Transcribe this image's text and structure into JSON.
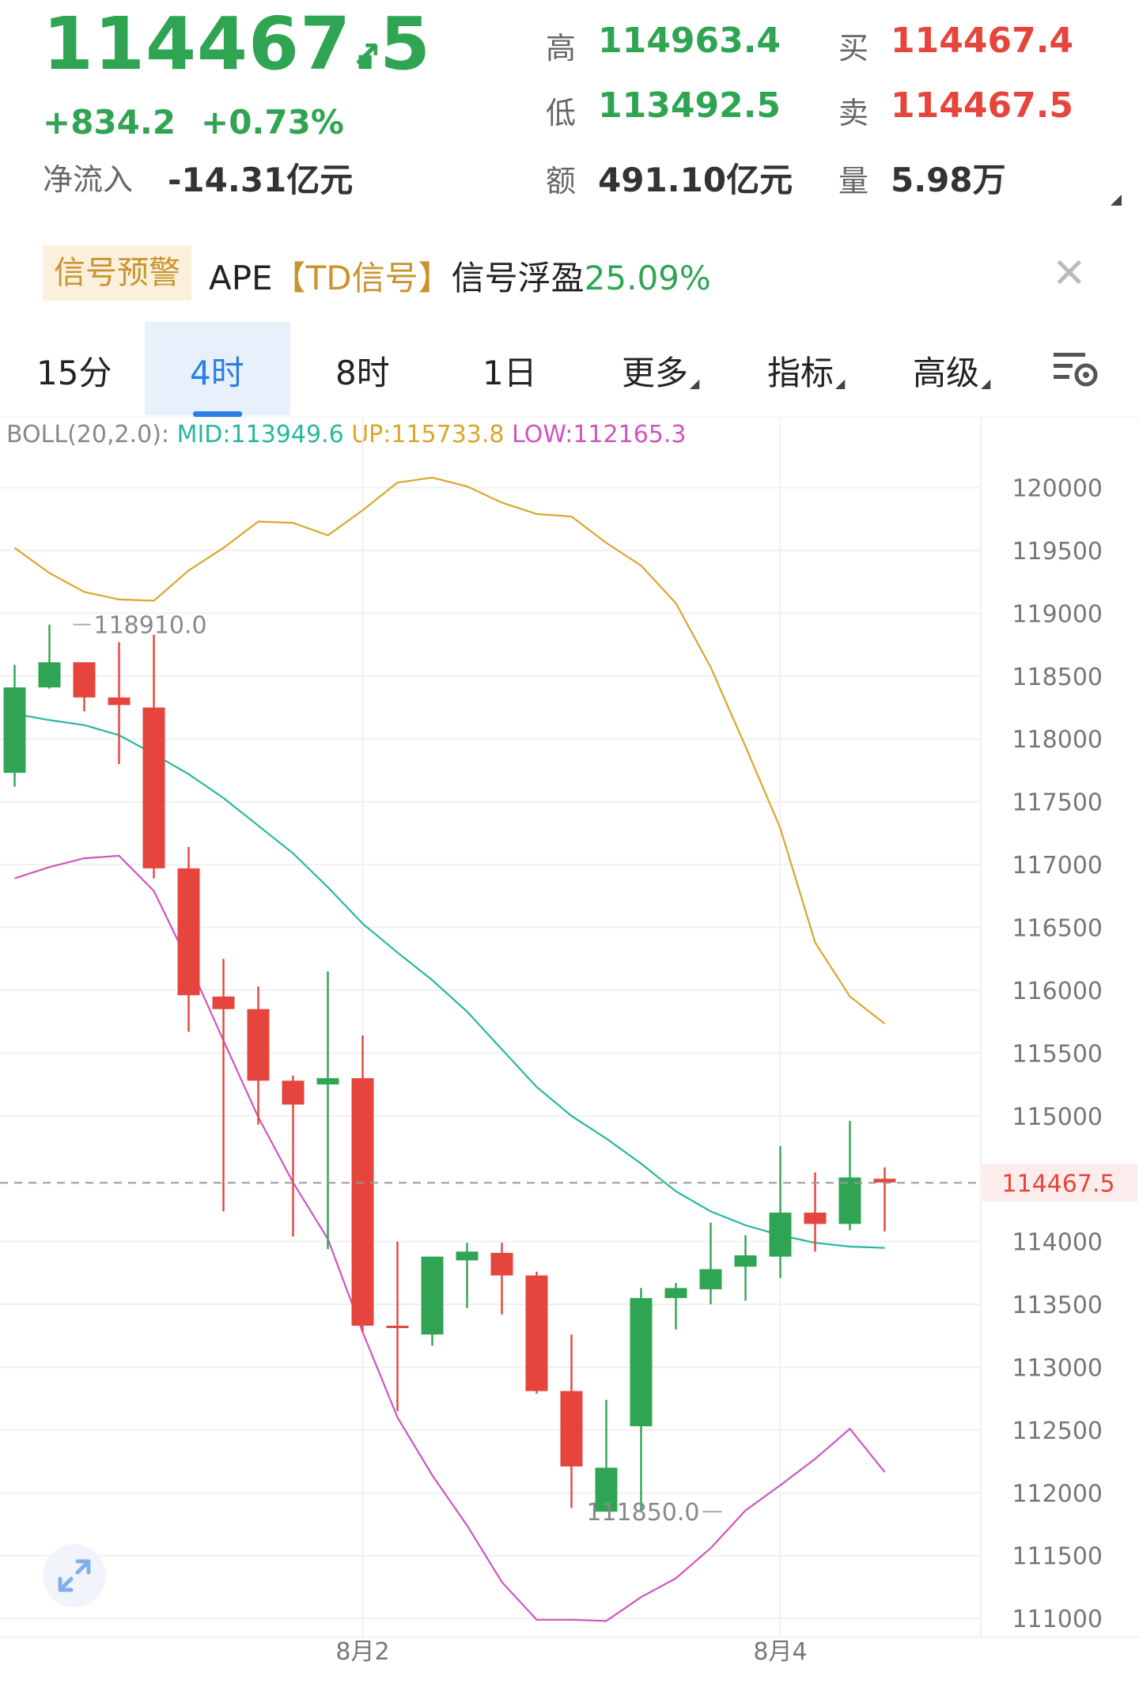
{
  "header": {
    "price": "114467.5",
    "arrow": "↗",
    "change": "+834.2",
    "change_pct": "+0.73%",
    "net_inflow_label": "净流入",
    "net_inflow_value": "-14.31亿元"
  },
  "stats": {
    "high_label": "高",
    "high_value": "114963.4",
    "low_label": "低",
    "low_value": "113492.5",
    "amount_label": "额",
    "amount_value": "491.10亿元",
    "bid_label": "买",
    "bid_value": "114467.4",
    "ask_label": "卖",
    "ask_value": "114467.5",
    "volume_label": "量",
    "volume_value": "5.98万"
  },
  "signal": {
    "badge": "信号预警",
    "name": "APE",
    "bracket_open": "【",
    "tag": "TD信号",
    "bracket_close": "】",
    "float_label": "信号浮盈",
    "float_value": "25.09%"
  },
  "tabs": [
    {
      "label": "15分",
      "selected": false
    },
    {
      "label": "4时",
      "selected": true
    },
    {
      "label": "8时",
      "selected": false
    },
    {
      "label": "1日",
      "selected": false
    },
    {
      "label": "更多",
      "selected": false
    },
    {
      "label": "指标",
      "selected": false
    },
    {
      "label": "高级",
      "selected": false
    }
  ],
  "icons": {
    "settings": "chart-settings-icon",
    "close": "close-icon",
    "expand": "expand-icon"
  },
  "colors": {
    "up": "#2fa553",
    "down": "#e5453c",
    "mid": "#26b89e",
    "upper": "#d9a72b",
    "lower": "#d054c0",
    "accent": "#2a7ee6"
  },
  "chart_data": {
    "type": "candlestick",
    "indicator": {
      "label": "BOLL(20,2.0):",
      "mid_label": "MID:113949.6",
      "up_label": "UP:115733.8",
      "low_label": "LOW:112165.3"
    },
    "y_ticks": [
      120000,
      119500,
      119000,
      118500,
      118000,
      117500,
      117000,
      116500,
      116000,
      115500,
      115000,
      114000,
      113500,
      113000,
      112500,
      112000,
      111500,
      111000
    ],
    "ylim": [
      110850,
      120450
    ],
    "x_labels": [
      {
        "index": 10,
        "text": "8月2"
      },
      {
        "index": 22,
        "text": "8月4"
      }
    ],
    "current_price": 114467.5,
    "current_price_label": "114467.5",
    "high_marker": {
      "index": 1,
      "value": 118910.0,
      "label": "118910.0"
    },
    "low_marker": {
      "index": 18,
      "value": 111850.0,
      "label": "111850.0"
    },
    "candles": [
      {
        "o": 117730,
        "h": 118590,
        "l": 117620,
        "c": 118410
      },
      {
        "o": 118410,
        "h": 118910,
        "l": 118400,
        "c": 118610
      },
      {
        "o": 118610,
        "h": 118610,
        "l": 118220,
        "c": 118330
      },
      {
        "o": 118330,
        "h": 118770,
        "l": 117800,
        "c": 118270
      },
      {
        "o": 118250,
        "h": 118830,
        "l": 116890,
        "c": 116970
      },
      {
        "o": 116970,
        "h": 117140,
        "l": 115670,
        "c": 115960
      },
      {
        "o": 115950,
        "h": 116250,
        "l": 114240,
        "c": 115850
      },
      {
        "o": 115850,
        "h": 116030,
        "l": 114930,
        "c": 115280
      },
      {
        "o": 115280,
        "h": 115320,
        "l": 114040,
        "c": 115090
      },
      {
        "o": 115250,
        "h": 116150,
        "l": 113940,
        "c": 115300
      },
      {
        "o": 115300,
        "h": 115640,
        "l": 113280,
        "c": 113330
      },
      {
        "o": 113330,
        "h": 114000,
        "l": 112650,
        "c": 113320
      },
      {
        "o": 113260,
        "h": 113880,
        "l": 113170,
        "c": 113880
      },
      {
        "o": 113850,
        "h": 113990,
        "l": 113470,
        "c": 113920
      },
      {
        "o": 113910,
        "h": 113990,
        "l": 113420,
        "c": 113730
      },
      {
        "o": 113730,
        "h": 113760,
        "l": 112790,
        "c": 112810
      },
      {
        "o": 112810,
        "h": 113260,
        "l": 111880,
        "c": 112210
      },
      {
        "o": 111850,
        "h": 112740,
        "l": 111850,
        "c": 112200
      },
      {
        "o": 112530,
        "h": 113630,
        "l": 111850,
        "c": 113550
      },
      {
        "o": 113550,
        "h": 113670,
        "l": 113300,
        "c": 113630
      },
      {
        "o": 113620,
        "h": 114150,
        "l": 113500,
        "c": 113780
      },
      {
        "o": 113800,
        "h": 114050,
        "l": 113530,
        "c": 113890
      },
      {
        "o": 113880,
        "h": 114760,
        "l": 113710,
        "c": 114230
      },
      {
        "o": 114230,
        "h": 114550,
        "l": 113920,
        "c": 114140
      },
      {
        "o": 114140,
        "h": 114960,
        "l": 114090,
        "c": 114510
      },
      {
        "o": 114500,
        "h": 114590,
        "l": 114080,
        "c": 114470
      }
    ],
    "boll_mid": [
      118200,
      118150,
      118110,
      118030,
      117880,
      117720,
      117530,
      117310,
      117090,
      116820,
      116530,
      116300,
      116080,
      115830,
      115530,
      115230,
      115000,
      114820,
      114620,
      114400,
      114240,
      114130,
      114050,
      113990,
      113960,
      113949.6
    ],
    "boll_upper": [
      119520,
      119320,
      119170,
      119110,
      119100,
      119340,
      119520,
      119730,
      119720,
      119620,
      119820,
      120040,
      120080,
      120010,
      119880,
      119790,
      119770,
      119560,
      119380,
      119080,
      118570,
      117940,
      117290,
      116380,
      115950,
      115733.8
    ],
    "boll_lower": [
      116890,
      116980,
      117050,
      117070,
      116790,
      116220,
      115600,
      114990,
      114470,
      114020,
      113280,
      112600,
      112140,
      111740,
      111290,
      110990,
      110990,
      110980,
      111170,
      111320,
      111560,
      111860,
      112060,
      112270,
      112510,
      112165.3
    ]
  }
}
